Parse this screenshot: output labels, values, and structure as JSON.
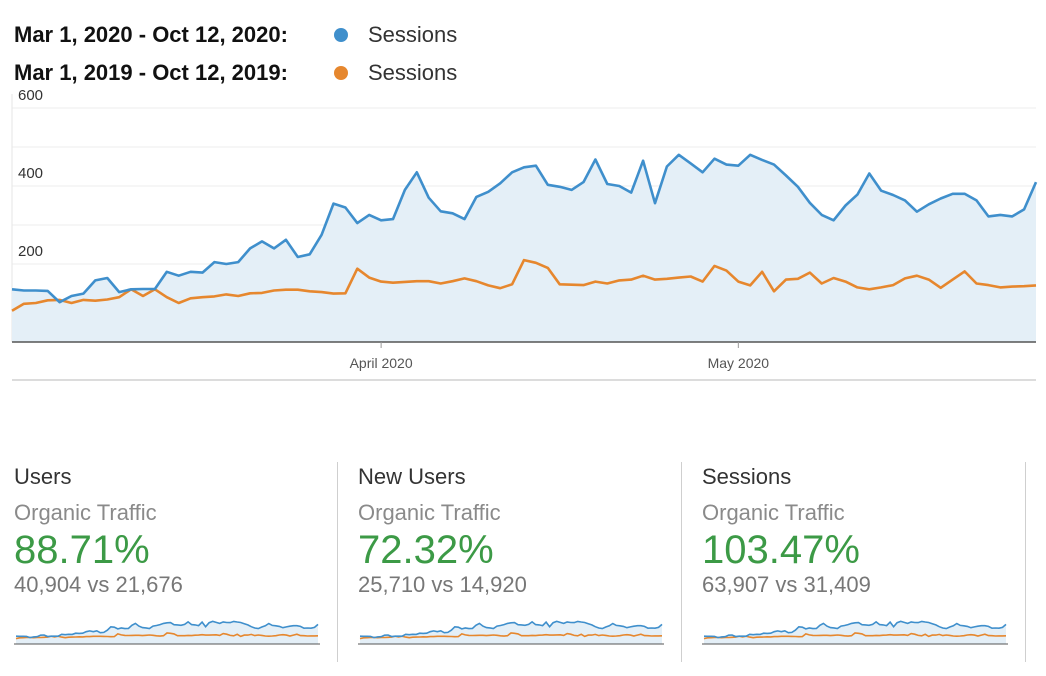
{
  "legend": [
    {
      "range": "Mar 1, 2020 - Oct 12, 2020:",
      "series": "Sessions",
      "color": "#3f8fcc"
    },
    {
      "range": "Mar 1, 2019 - Oct 12, 2019:",
      "series": "Sessions",
      "color": "#e6872e"
    }
  ],
  "colors": {
    "current": "#3f8fcc",
    "previous": "#e6872e",
    "area": "#e4eff7",
    "positive": "#3c9a46"
  },
  "chart_data": {
    "type": "line",
    "ylim": [
      0,
      600
    ],
    "y_ticks": [
      200,
      400,
      600
    ],
    "x_tick_labels": [
      {
        "label": "April 2020",
        "index": 31
      },
      {
        "label": "May 2020",
        "index": 61
      }
    ],
    "grid": true,
    "area_fill": "current",
    "series": [
      {
        "name": "Mar 1, 2020 - Oct 12, 2020: Sessions",
        "values": [
          135,
          132,
          132,
          131,
          102,
          118,
          124,
          158,
          164,
          128,
          135,
          136,
          136,
          180,
          170,
          180,
          178,
          205,
          200,
          205,
          240,
          258,
          240,
          262,
          218,
          225,
          275,
          355,
          345,
          305,
          326,
          312,
          315,
          390,
          435,
          370,
          335,
          330,
          315,
          372,
          385,
          407,
          435,
          448,
          452,
          403,
          398,
          390,
          410,
          468,
          405,
          400,
          383,
          465,
          356,
          450,
          480,
          458,
          435,
          470,
          455,
          452,
          480,
          467,
          455,
          427,
          398,
          357,
          326,
          312,
          350,
          378,
          432,
          388,
          377,
          363,
          334,
          353,
          368,
          380,
          380,
          363,
          322,
          326,
          322,
          340,
          410
        ]
      },
      {
        "name": "Mar 1, 2019 - Oct 12, 2019: Sessions",
        "values": [
          80,
          98,
          100,
          107,
          108,
          100,
          108,
          106,
          109,
          115,
          135,
          118,
          135,
          115,
          100,
          112,
          115,
          117,
          122,
          118,
          125,
          126,
          132,
          134,
          134,
          130,
          128,
          124,
          125,
          188,
          165,
          155,
          152,
          154,
          156,
          156,
          150,
          156,
          163,
          156,
          145,
          138,
          148,
          210,
          203,
          190,
          148,
          147,
          146,
          155,
          150,
          158,
          160,
          170,
          160,
          162,
          165,
          168,
          155,
          195,
          183,
          155,
          145,
          180,
          130,
          160,
          162,
          178,
          150,
          164,
          155,
          140,
          135,
          140,
          146,
          163,
          170,
          160,
          139,
          160,
          181,
          150,
          146,
          140,
          142,
          143,
          145
        ]
      }
    ]
  },
  "cards": [
    {
      "title": "Users",
      "segment": "Organic Traffic",
      "change": "88.71%",
      "comparison": "40,904 vs 21,676"
    },
    {
      "title": "New Users",
      "segment": "Organic Traffic",
      "change": "72.32%",
      "comparison": "25,710 vs 14,920"
    },
    {
      "title": "Sessions",
      "segment": "Organic Traffic",
      "change": "103.47%",
      "comparison": "63,907 vs 31,409"
    }
  ]
}
